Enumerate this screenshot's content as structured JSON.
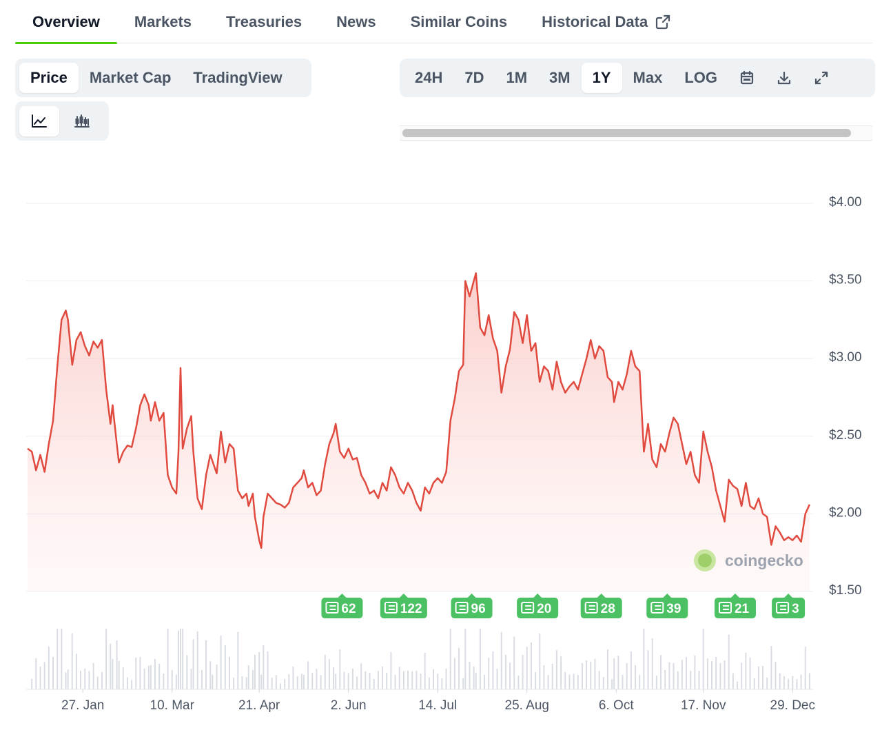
{
  "tabs": [
    {
      "label": "Overview",
      "active": true
    },
    {
      "label": "Markets",
      "active": false
    },
    {
      "label": "Treasuries",
      "active": false
    },
    {
      "label": "News",
      "active": false
    },
    {
      "label": "Similar Coins",
      "active": false
    },
    {
      "label": "Historical Data",
      "active": false,
      "icon": "external-link-icon"
    }
  ],
  "view_toggle": [
    {
      "label": "Price",
      "active": true
    },
    {
      "label": "Market Cap",
      "active": false
    },
    {
      "label": "TradingView",
      "active": false
    }
  ],
  "chart_type_toggle": [
    {
      "icon": "line-chart-icon",
      "active": true
    },
    {
      "icon": "candlestick-chart-icon",
      "active": false
    }
  ],
  "range_toggle": [
    {
      "label": "24H",
      "active": false
    },
    {
      "label": "7D",
      "active": false
    },
    {
      "label": "1M",
      "active": false
    },
    {
      "label": "3M",
      "active": false
    },
    {
      "label": "1Y",
      "active": true
    },
    {
      "label": "Max",
      "active": false
    },
    {
      "label": "LOG",
      "active": false
    }
  ],
  "range_icons": [
    "calendar-icon",
    "download-icon",
    "expand-icon"
  ],
  "watermark": "coingecko",
  "colors": {
    "line": "#e04a3f",
    "accent": "#4bcc00",
    "news": "#4bc163",
    "volume": "#d9dde3"
  },
  "chart_data": {
    "type": "area",
    "y_ticks": [
      "$1.50",
      "$2.00",
      "$2.50",
      "$3.00",
      "$3.50",
      "$4.00"
    ],
    "ylim": [
      1.5,
      4.0
    ],
    "x_tick_labels": [
      "27. Jan",
      "10. Mar",
      "21. Apr",
      "2. Jun",
      "14. Jul",
      "25. Aug",
      "6. Oct",
      "17. Nov",
      "29. Dec"
    ],
    "x_tick_days": [
      26,
      68,
      109,
      151,
      193,
      235,
      277,
      318,
      360
    ],
    "x_range_days": [
      0,
      369
    ],
    "grid": true,
    "series": [
      {
        "points": [
          [
            0,
            2.42
          ],
          [
            2,
            2.4
          ],
          [
            4,
            2.28
          ],
          [
            6,
            2.38
          ],
          [
            8,
            2.27
          ],
          [
            10,
            2.45
          ],
          [
            12,
            2.6
          ],
          [
            14,
            2.95
          ],
          [
            16,
            3.25
          ],
          [
            18,
            3.31
          ],
          [
            19,
            3.25
          ],
          [
            21,
            2.96
          ],
          [
            23,
            3.12
          ],
          [
            25,
            3.17
          ],
          [
            27,
            3.08
          ],
          [
            29,
            3.02
          ],
          [
            31,
            3.11
          ],
          [
            33,
            3.07
          ],
          [
            35,
            3.12
          ],
          [
            37,
            2.8
          ],
          [
            39,
            2.58
          ],
          [
            40,
            2.7
          ],
          [
            42,
            2.45
          ],
          [
            43,
            2.33
          ],
          [
            45,
            2.4
          ],
          [
            47,
            2.44
          ],
          [
            49,
            2.43
          ],
          [
            51,
            2.55
          ],
          [
            53,
            2.7
          ],
          [
            55,
            2.77
          ],
          [
            57,
            2.7
          ],
          [
            58,
            2.6
          ],
          [
            60,
            2.72
          ],
          [
            62,
            2.6
          ],
          [
            64,
            2.65
          ],
          [
            66,
            2.25
          ],
          [
            68,
            2.17
          ],
          [
            70,
            2.13
          ],
          [
            71,
            2.4
          ],
          [
            72,
            2.94
          ],
          [
            73,
            2.42
          ],
          [
            75,
            2.55
          ],
          [
            77,
            2.63
          ],
          [
            78,
            2.4
          ],
          [
            80,
            2.1
          ],
          [
            82,
            2.03
          ],
          [
            84,
            2.25
          ],
          [
            86,
            2.38
          ],
          [
            87,
            2.34
          ],
          [
            89,
            2.26
          ],
          [
            91,
            2.53
          ],
          [
            93,
            2.33
          ],
          [
            95,
            2.45
          ],
          [
            97,
            2.42
          ],
          [
            99,
            2.15
          ],
          [
            101,
            2.1
          ],
          [
            103,
            2.13
          ],
          [
            104,
            2.05
          ],
          [
            106,
            2.13
          ],
          [
            107,
            1.98
          ],
          [
            109,
            1.83
          ],
          [
            110,
            1.78
          ],
          [
            111,
            1.98
          ],
          [
            113,
            2.13
          ],
          [
            115,
            2.1
          ],
          [
            117,
            2.07
          ],
          [
            119,
            2.06
          ],
          [
            121,
            2.04
          ],
          [
            123,
            2.07
          ],
          [
            125,
            2.17
          ],
          [
            127,
            2.2
          ],
          [
            129,
            2.23
          ],
          [
            130,
            2.28
          ],
          [
            132,
            2.17
          ],
          [
            134,
            2.2
          ],
          [
            136,
            2.12
          ],
          [
            138,
            2.15
          ],
          [
            140,
            2.32
          ],
          [
            142,
            2.45
          ],
          [
            144,
            2.52
          ],
          [
            145,
            2.58
          ],
          [
            147,
            2.4
          ],
          [
            149,
            2.36
          ],
          [
            151,
            2.42
          ],
          [
            153,
            2.35
          ],
          [
            155,
            2.36
          ],
          [
            157,
            2.25
          ],
          [
            159,
            2.2
          ],
          [
            161,
            2.13
          ],
          [
            163,
            2.15
          ],
          [
            165,
            2.1
          ],
          [
            167,
            2.2
          ],
          [
            169,
            2.15
          ],
          [
            171,
            2.3
          ],
          [
            173,
            2.25
          ],
          [
            175,
            2.17
          ],
          [
            177,
            2.13
          ],
          [
            179,
            2.2
          ],
          [
            181,
            2.15
          ],
          [
            183,
            2.07
          ],
          [
            185,
            2.02
          ],
          [
            187,
            2.17
          ],
          [
            189,
            2.13
          ],
          [
            191,
            2.2
          ],
          [
            193,
            2.23
          ],
          [
            195,
            2.2
          ],
          [
            197,
            2.27
          ],
          [
            199,
            2.6
          ],
          [
            201,
            2.74
          ],
          [
            203,
            2.92
          ],
          [
            205,
            2.96
          ],
          [
            206,
            3.5
          ],
          [
            208,
            3.4
          ],
          [
            210,
            3.5
          ],
          [
            211,
            3.55
          ],
          [
            213,
            3.2
          ],
          [
            215,
            3.15
          ],
          [
            217,
            3.28
          ],
          [
            219,
            3.13
          ],
          [
            221,
            3.05
          ],
          [
            223,
            2.78
          ],
          [
            225,
            2.95
          ],
          [
            227,
            3.06
          ],
          [
            229,
            3.3
          ],
          [
            231,
            3.25
          ],
          [
            233,
            3.1
          ],
          [
            235,
            3.28
          ],
          [
            237,
            3.05
          ],
          [
            239,
            3.1
          ],
          [
            241,
            2.85
          ],
          [
            243,
            2.95
          ],
          [
            245,
            2.92
          ],
          [
            247,
            2.8
          ],
          [
            249,
            2.98
          ],
          [
            251,
            2.85
          ],
          [
            253,
            2.78
          ],
          [
            255,
            2.82
          ],
          [
            257,
            2.85
          ],
          [
            259,
            2.8
          ],
          [
            261,
            2.9
          ],
          [
            263,
            3.0
          ],
          [
            265,
            3.12
          ],
          [
            267,
            3.0
          ],
          [
            269,
            3.08
          ],
          [
            271,
            3.05
          ],
          [
            273,
            2.88
          ],
          [
            275,
            2.85
          ],
          [
            276,
            2.72
          ],
          [
            278,
            2.85
          ],
          [
            280,
            2.8
          ],
          [
            282,
            2.9
          ],
          [
            284,
            3.05
          ],
          [
            286,
            2.95
          ],
          [
            288,
            2.92
          ],
          [
            290,
            2.4
          ],
          [
            292,
            2.58
          ],
          [
            294,
            2.35
          ],
          [
            296,
            2.3
          ],
          [
            298,
            2.45
          ],
          [
            300,
            2.4
          ],
          [
            302,
            2.52
          ],
          [
            304,
            2.62
          ],
          [
            306,
            2.58
          ],
          [
            308,
            2.45
          ],
          [
            310,
            2.32
          ],
          [
            312,
            2.4
          ],
          [
            314,
            2.25
          ],
          [
            316,
            2.2
          ],
          [
            318,
            2.53
          ],
          [
            320,
            2.4
          ],
          [
            322,
            2.3
          ],
          [
            324,
            2.15
          ],
          [
            326,
            2.05
          ],
          [
            328,
            1.95
          ],
          [
            330,
            2.22
          ],
          [
            332,
            2.18
          ],
          [
            334,
            2.16
          ],
          [
            336,
            2.05
          ],
          [
            338,
            2.2
          ],
          [
            340,
            2.05
          ],
          [
            342,
            2.03
          ],
          [
            344,
            2.1
          ],
          [
            346,
            2.0
          ],
          [
            348,
            1.98
          ],
          [
            350,
            1.8
          ],
          [
            352,
            1.92
          ],
          [
            354,
            1.88
          ],
          [
            356,
            1.83
          ],
          [
            358,
            1.85
          ],
          [
            360,
            1.83
          ],
          [
            362,
            1.86
          ],
          [
            364,
            1.82
          ],
          [
            366,
            2.0
          ],
          [
            368,
            2.06
          ]
        ]
      }
    ],
    "news_markers": [
      {
        "count": "62",
        "day": 148
      },
      {
        "count": "122",
        "day": 177
      },
      {
        "count": "96",
        "day": 209
      },
      {
        "count": "20",
        "day": 240
      },
      {
        "count": "28",
        "day": 270
      },
      {
        "count": "39",
        "day": 301
      },
      {
        "count": "21",
        "day": 333
      },
      {
        "count": "3",
        "day": 358
      }
    ]
  }
}
